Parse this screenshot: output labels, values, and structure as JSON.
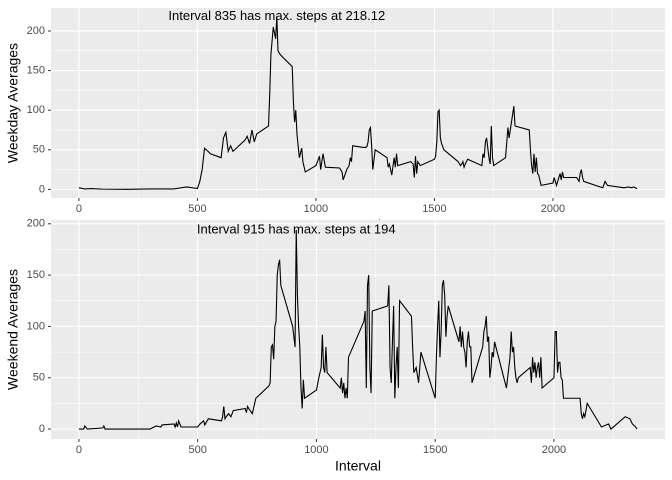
{
  "chart_data": [
    {
      "type": "line",
      "annotation": "Interval 835 has max. steps at 218.12",
      "xlabel": "Interval",
      "ylabel": "Weekday Averages",
      "color": "#000000",
      "grid": true,
      "x": [
        0,
        25,
        50,
        100,
        200,
        300,
        400,
        455,
        500,
        510,
        520,
        530,
        545,
        555,
        600,
        610,
        620,
        630,
        640,
        650,
        700,
        710,
        720,
        730,
        740,
        750,
        800,
        805,
        810,
        820,
        830,
        835,
        840,
        850,
        900,
        905,
        910,
        915,
        920,
        930,
        940,
        945,
        955,
        1000,
        1010,
        1015,
        1020,
        1030,
        1040,
        1100,
        1110,
        1115,
        1130,
        1140,
        1145,
        1150,
        1155,
        1200,
        1210,
        1215,
        1220,
        1225,
        1230,
        1235,
        1240,
        1250,
        1300,
        1305,
        1310,
        1320,
        1330,
        1335,
        1340,
        1345,
        1400,
        1410,
        1415,
        1420,
        1425,
        1430,
        1440,
        1500,
        1505,
        1510,
        1515,
        1520,
        1525,
        1530,
        1540,
        1600,
        1610,
        1615,
        1620,
        1625,
        1630,
        1640,
        1700,
        1705,
        1710,
        1715,
        1720,
        1730,
        1735,
        1740,
        1745,
        1750,
        1800,
        1810,
        1815,
        1820,
        1830,
        1835,
        1840,
        1900,
        1905,
        1910,
        1915,
        1920,
        1925,
        1930,
        1935,
        1940,
        1950,
        2000,
        2005,
        2010,
        2015,
        2030,
        2035,
        2040,
        2045,
        2100,
        2110,
        2115,
        2120,
        2125,
        2130,
        2200,
        2210,
        2220,
        2230,
        2300,
        2320,
        2330,
        2340,
        2355
      ],
      "values": [
        2,
        0.5,
        1,
        0.3,
        0,
        0.5,
        0.5,
        3,
        1,
        10,
        25,
        52,
        48,
        45,
        40,
        65,
        72,
        48,
        55,
        48,
        62,
        67,
        58,
        75,
        60,
        70,
        80,
        120,
        170,
        205,
        190,
        218.12,
        175,
        170,
        155,
        110,
        85,
        100,
        70,
        40,
        52,
        35,
        22,
        30,
        38,
        42,
        25,
        45,
        28,
        27,
        22,
        12,
        25,
        30,
        40,
        35,
        55,
        53,
        53,
        54,
        60,
        75,
        78,
        55,
        25,
        50,
        40,
        28,
        32,
        18,
        40,
        28,
        45,
        30,
        35,
        32,
        15,
        42,
        20,
        35,
        30,
        38,
        42,
        60,
        98,
        100,
        65,
        58,
        50,
        35,
        30,
        32,
        35,
        28,
        32,
        38,
        30,
        45,
        40,
        60,
        65,
        40,
        32,
        80,
        40,
        30,
        40,
        78,
        65,
        75,
        95,
        105,
        80,
        75,
        50,
        30,
        20,
        45,
        22,
        40,
        20,
        18,
        5,
        8,
        15,
        10,
        5,
        20,
        12,
        22,
        15,
        15,
        10,
        20,
        25,
        15,
        10,
        3,
        2,
        10,
        5,
        2,
        3,
        2,
        3,
        1
      ],
      "xlim": [
        -117.75,
        2472.75
      ],
      "xticks": [
        0,
        500,
        1000,
        1500,
        2000
      ],
      "x_minor_ticks": [
        250,
        750,
        1250,
        1750,
        2250
      ],
      "ylim": [
        -10.906,
        229.026
      ],
      "yticks": [
        0,
        50,
        100,
        150,
        200
      ],
      "y_minor_ticks": [
        25,
        75,
        125,
        175
      ]
    },
    {
      "type": "line",
      "annotation": "Interval 915 has max. steps at 194",
      "xlabel": "Interval",
      "ylabel": "Weekend Averages",
      "color": "#000000",
      "grid": true,
      "x": [
        0,
        20,
        25,
        35,
        100,
        105,
        110,
        200,
        300,
        325,
        345,
        350,
        400,
        405,
        410,
        415,
        420,
        430,
        500,
        510,
        525,
        530,
        545,
        600,
        605,
        610,
        615,
        620,
        630,
        640,
        650,
        700,
        705,
        710,
        715,
        730,
        745,
        800,
        805,
        810,
        815,
        820,
        825,
        830,
        835,
        840,
        845,
        850,
        900,
        905,
        910,
        915,
        920,
        925,
        930,
        935,
        940,
        945,
        950,
        1000,
        1010,
        1020,
        1025,
        1030,
        1035,
        1040,
        1045,
        1100,
        1105,
        1110,
        1115,
        1120,
        1125,
        1130,
        1135,
        1200,
        1205,
        1210,
        1215,
        1220,
        1225,
        1230,
        1235,
        1300,
        1305,
        1310,
        1315,
        1320,
        1325,
        1330,
        1335,
        1340,
        1345,
        1350,
        1400,
        1405,
        1410,
        1420,
        1430,
        1440,
        1500,
        1505,
        1510,
        1515,
        1520,
        1525,
        1530,
        1535,
        1540,
        1545,
        1550,
        1555,
        1600,
        1605,
        1610,
        1615,
        1620,
        1625,
        1630,
        1635,
        1640,
        1645,
        1650,
        1655,
        1700,
        1705,
        1710,
        1715,
        1720,
        1725,
        1730,
        1735,
        1740,
        1745,
        1750,
        1800,
        1805,
        1810,
        1815,
        1820,
        1825,
        1830,
        1835,
        1840,
        1845,
        1850,
        1900,
        1905,
        1910,
        1915,
        1920,
        1925,
        1930,
        1935,
        1940,
        1945,
        1950,
        2000,
        2005,
        2010,
        2015,
        2020,
        2025,
        2030,
        2035,
        2040,
        2045,
        2100,
        2110,
        2115,
        2120,
        2125,
        2130,
        2140,
        2200,
        2230,
        2240,
        2300,
        2320,
        2330,
        2340,
        2350
      ],
      "values": [
        0,
        0,
        3,
        0,
        1,
        3,
        0,
        0,
        0,
        3,
        2,
        4,
        5,
        2,
        6,
        2,
        8,
        2,
        2,
        5,
        8,
        4,
        10,
        8,
        12,
        22,
        10,
        12,
        15,
        12,
        18,
        20,
        16,
        22,
        20,
        15,
        30,
        42,
        45,
        80,
        82,
        68,
        100,
        105,
        150,
        160,
        165,
        140,
        100,
        90,
        80,
        194,
        130,
        100,
        80,
        40,
        20,
        48,
        30,
        38,
        50,
        60,
        92,
        60,
        55,
        80,
        55,
        40,
        50,
        35,
        45,
        30,
        40,
        30,
        70,
        105,
        115,
        40,
        140,
        150,
        60,
        35,
        115,
        120,
        140,
        60,
        45,
        85,
        120,
        30,
        60,
        80,
        40,
        125,
        110,
        80,
        55,
        60,
        45,
        75,
        30,
        70,
        100,
        125,
        70,
        95,
        140,
        145,
        130,
        90,
        110,
        120,
        85,
        100,
        80,
        95,
        80,
        75,
        60,
        85,
        95,
        80,
        80,
        45,
        80,
        95,
        100,
        110,
        85,
        90,
        50,
        60,
        75,
        70,
        85,
        40,
        50,
        60,
        70,
        95,
        75,
        80,
        60,
        50,
        45,
        50,
        60,
        45,
        70,
        55,
        65,
        50,
        60,
        65,
        50,
        70,
        40,
        50,
        95,
        95,
        55,
        65,
        65,
        50,
        48,
        30,
        30,
        30,
        30,
        15,
        10,
        15,
        12,
        25,
        2,
        5,
        0,
        12,
        10,
        5,
        3,
        0
      ],
      "xlim": [
        -117.5,
        2467.5
      ],
      "xticks": [
        0,
        500,
        1000,
        1500,
        2000
      ],
      "x_minor_ticks": [
        250,
        750,
        1250,
        1750,
        2250
      ],
      "ylim": [
        -9.7,
        203.7
      ],
      "yticks": [
        0,
        50,
        100,
        150,
        200
      ],
      "y_minor_ticks": [
        25,
        75,
        125,
        175
      ]
    }
  ]
}
